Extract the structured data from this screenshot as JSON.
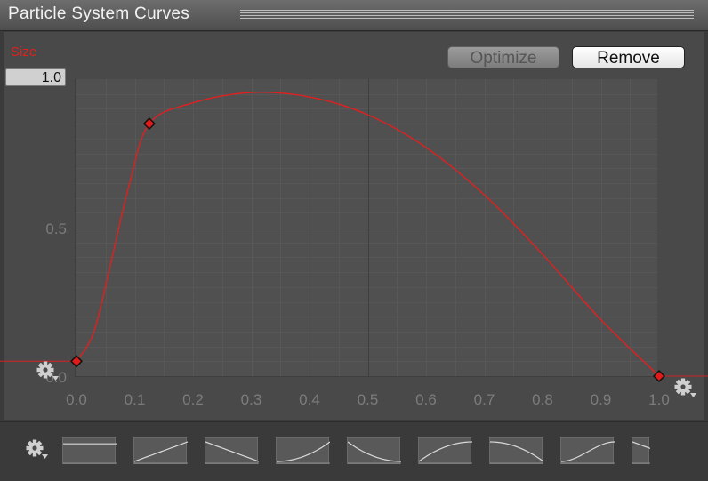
{
  "window": {
    "title": "Particle System Curves"
  },
  "toolbar": {
    "optimize_label": "Optimize",
    "remove_label": "Remove"
  },
  "curve": {
    "name": "Size",
    "color": "#e02020",
    "max_value": "1.0"
  },
  "chart_data": {
    "type": "line",
    "title": "",
    "xlabel": "",
    "ylabel": "",
    "xlim": [
      0.0,
      1.0
    ],
    "ylim": [
      0.0,
      1.0
    ],
    "x_ticks": [
      "0.0",
      "0.1",
      "0.2",
      "0.3",
      "0.4",
      "0.5",
      "0.6",
      "0.7",
      "0.8",
      "0.9",
      "1.0"
    ],
    "y_ticks": [
      "0.0",
      "0.5"
    ],
    "grid": true,
    "series": [
      {
        "name": "Size",
        "keys": [
          {
            "x": 0.0,
            "y": 0.05
          },
          {
            "x": 0.125,
            "y": 0.85
          },
          {
            "x": 1.0,
            "y": 0.0
          }
        ],
        "samples": [
          {
            "x": 0.0,
            "y": 0.05
          },
          {
            "x": 0.03,
            "y": 0.15
          },
          {
            "x": 0.06,
            "y": 0.39
          },
          {
            "x": 0.09,
            "y": 0.64
          },
          {
            "x": 0.125,
            "y": 0.85
          },
          {
            "x": 0.2,
            "y": 0.92
          },
          {
            "x": 0.3,
            "y": 0.955
          },
          {
            "x": 0.4,
            "y": 0.94
          },
          {
            "x": 0.5,
            "y": 0.88
          },
          {
            "x": 0.6,
            "y": 0.77
          },
          {
            "x": 0.7,
            "y": 0.61
          },
          {
            "x": 0.8,
            "y": 0.41
          },
          {
            "x": 0.9,
            "y": 0.19
          },
          {
            "x": 1.0,
            "y": 0.0
          }
        ]
      }
    ]
  },
  "presets": {
    "items": [
      {
        "name": "constant"
      },
      {
        "name": "linear-up"
      },
      {
        "name": "linear-down"
      },
      {
        "name": "ease-in"
      },
      {
        "name": "ease-out-down"
      },
      {
        "name": "ease-out-up"
      },
      {
        "name": "ease-in-down"
      },
      {
        "name": "ease-in-out-up"
      },
      {
        "name": "partial"
      }
    ]
  },
  "icons": {
    "gear": "gear-icon"
  }
}
